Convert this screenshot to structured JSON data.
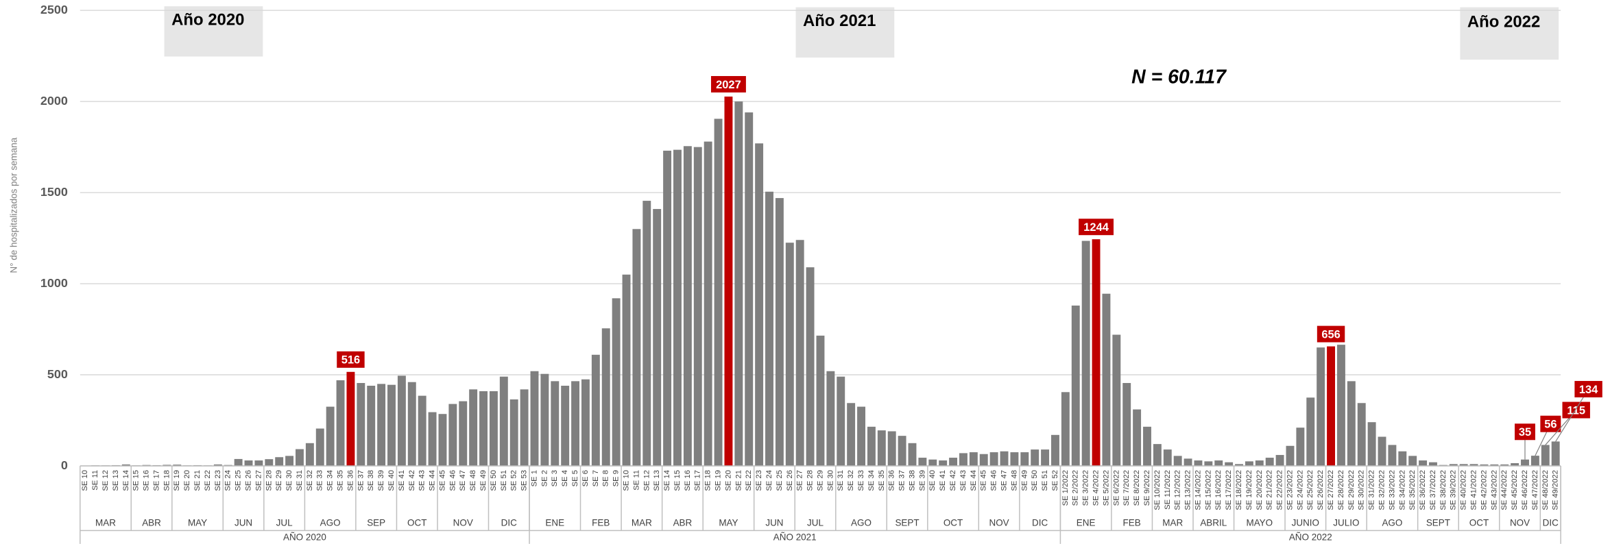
{
  "chart_data": {
    "type": "bar",
    "annotations": {
      "year_boxes": [
        "Año 2020",
        "Año 2021",
        "Año 2022"
      ],
      "total": "N = 60.117"
    },
    "ylabel": "N° de hospitalizados por semana",
    "ylim": [
      0,
      2500
    ],
    "yticks": [
      0,
      500,
      1000,
      1500,
      2000,
      2500
    ],
    "grid": true,
    "color": "#7f7f7f",
    "highlight_color": "#c00000",
    "label_color": "#c00000",
    "categories": [
      "SE 10",
      "SE 11",
      "SE 12",
      "SE 13",
      "SE 14",
      "SE 15",
      "SE 16",
      "SE 17",
      "SE 18",
      "SE 19",
      "SE 20",
      "SE 21",
      "SE 22",
      "SE 23",
      "SE 24",
      "SE 25",
      "SE 26",
      "SE 27",
      "SE 28",
      "SE 29",
      "SE 30",
      "SE 31",
      "SE 32",
      "SE 33",
      "SE 34",
      "SE 35",
      "SE 36",
      "SE 37",
      "SE 38",
      "SE 39",
      "SE 40",
      "SE 41",
      "SE 42",
      "SE 43",
      "SE 44",
      "SE 45",
      "SE 46",
      "SE 47",
      "SE 48",
      "SE 49",
      "SE 50",
      "SE 51",
      "SE 52",
      "SE 53",
      "SE 1",
      "SE 2",
      "SE 3",
      "SE 4",
      "SE 5",
      "SE 6",
      "SE 7",
      "SE 8",
      "SE 9",
      "SE 10",
      "SE 11",
      "SE 12",
      "SE 13",
      "SE 14",
      "SE 15",
      "SE 16",
      "SE 17",
      "SE 18",
      "SE 19",
      "SE 20",
      "SE 21",
      "SE 22",
      "SE 23",
      "SE 24",
      "SE 25",
      "SE 26",
      "SE 27",
      "SE 28",
      "SE 29",
      "SE 30",
      "SE 31",
      "SE 32",
      "SE 33",
      "SE 34",
      "SE 35",
      "SE 36",
      "SE 37",
      "SE 38",
      "SE 39",
      "SE 40",
      "SE 41",
      "SE 42",
      "SE 43",
      "SE 44",
      "SE 45",
      "SE 46",
      "SE 47",
      "SE 48",
      "SE 49",
      "SE 50",
      "SE 51",
      "SE 52",
      "SE 1/2022",
      "SE 2/2022",
      "SE 3/2022",
      "SE 4/2022",
      "SE 5/2022",
      "SE 6/2022",
      "SE 7/2022",
      "SE 8/2022",
      "SE 9/2022",
      "SE 10/2022",
      "SE 11/2022",
      "SE 12/2022",
      "SE 13/2022",
      "SE 14/2022",
      "SE 15/2022",
      "SE 16/2022",
      "SE 17/2022",
      "SE 18/2022",
      "SE 19/2022",
      "SE 20/2022",
      "SE 21/2022",
      "SE 22/2022",
      "SE 23/2022",
      "SE 24/2022",
      "SE 25/2022",
      "SE 26/2022",
      "SE 27/2022",
      "SE 28/2022",
      "SE 29/2022",
      "SE 30/2022",
      "SE 31/2022",
      "SE 32/2022",
      "SE 33/2022",
      "SE 34/2022",
      "SE 35/2022",
      "SE 36/2022",
      "SE 37/2022",
      "SE 38/2022",
      "SE 39/2022",
      "SE 40/2022",
      "SE 41/2022",
      "SE 42/2022",
      "SE 43/2022",
      "SE 44/2022",
      "SE 45/2022",
      "SE 46/2022",
      "SE 47/2022",
      "SE 48/2022",
      "SE 49/2022"
    ],
    "values": [
      2,
      3,
      3,
      4,
      8,
      3,
      5,
      4,
      6,
      7,
      3,
      4,
      3,
      8,
      5,
      38,
      30,
      30,
      37,
      48,
      55,
      92,
      125,
      205,
      325,
      470,
      516,
      455,
      440,
      450,
      445,
      495,
      460,
      385,
      295,
      285,
      340,
      355,
      420,
      410,
      410,
      490,
      365,
      420,
      520,
      505,
      465,
      440,
      465,
      475,
      610,
      755,
      920,
      1050,
      1300,
      1455,
      1410,
      1730,
      1735,
      1755,
      1750,
      1780,
      1905,
      2027,
      2000,
      1940,
      1770,
      1505,
      1470,
      1225,
      1240,
      1090,
      715,
      520,
      490,
      345,
      325,
      215,
      195,
      190,
      165,
      125,
      45,
      35,
      30,
      45,
      70,
      75,
      65,
      75,
      80,
      75,
      75,
      90,
      90,
      170,
      405,
      880,
      1235,
      1244,
      945,
      720,
      455,
      310,
      215,
      120,
      90,
      55,
      40,
      30,
      25,
      30,
      20,
      10,
      25,
      30,
      45,
      60,
      110,
      210,
      375,
      650,
      656,
      665,
      465,
      345,
      240,
      160,
      115,
      80,
      55,
      30,
      20,
      5,
      10,
      10,
      10,
      8,
      8,
      8,
      15,
      35,
      56,
      115,
      134
    ],
    "highlighted": [
      "SE 36 2020",
      "SE 20 2021",
      "SE 4/2022",
      "SE 27/2022"
    ],
    "value_labels": [
      null,
      null,
      null,
      null,
      null,
      null,
      null,
      null,
      null,
      null,
      null,
      null,
      null,
      null,
      null,
      null,
      null,
      null,
      null,
      null,
      null,
      null,
      null,
      null,
      null,
      null,
      "516",
      null,
      null,
      null,
      null,
      null,
      null,
      null,
      null,
      null,
      null,
      null,
      null,
      null,
      null,
      null,
      null,
      null,
      null,
      null,
      null,
      null,
      null,
      null,
      null,
      null,
      null,
      null,
      null,
      null,
      null,
      null,
      null,
      null,
      null,
      null,
      null,
      "2027",
      null,
      null,
      null,
      null,
      null,
      null,
      null,
      null,
      null,
      null,
      null,
      null,
      null,
      null,
      null,
      null,
      null,
      null,
      null,
      null,
      null,
      null,
      null,
      null,
      null,
      null,
      null,
      null,
      null,
      null,
      null,
      null,
      null,
      null,
      null,
      "1244",
      null,
      null,
      null,
      null,
      null,
      null,
      null,
      null,
      null,
      null,
      null,
      null,
      null,
      null,
      null,
      null,
      null,
      null,
      null,
      null,
      null,
      null,
      "656",
      null,
      null,
      null,
      null,
      null,
      null,
      null,
      null,
      null,
      null,
      null,
      null,
      null,
      null,
      null,
      null,
      null,
      null,
      "35",
      "56",
      "115",
      "134"
    ],
    "months": [
      {
        "name": "MAR",
        "weeks": 5
      },
      {
        "name": "ABR",
        "weeks": 4
      },
      {
        "name": "MAY",
        "weeks": 5
      },
      {
        "name": "JUN",
        "weeks": 4
      },
      {
        "name": "JUL",
        "weeks": 4
      },
      {
        "name": "AGO",
        "weeks": 5
      },
      {
        "name": "SEP",
        "weeks": 4
      },
      {
        "name": "OCT",
        "weeks": 4
      },
      {
        "name": "NOV",
        "weeks": 5
      },
      {
        "name": "DIC",
        "weeks": 4
      },
      {
        "name": "ENE",
        "weeks": 5
      },
      {
        "name": "FEB",
        "weeks": 4
      },
      {
        "name": "MAR",
        "weeks": 4
      },
      {
        "name": "ABR",
        "weeks": 4
      },
      {
        "name": "MAY",
        "weeks": 5
      },
      {
        "name": "JUN",
        "weeks": 4
      },
      {
        "name": "JUL",
        "weeks": 4
      },
      {
        "name": "AGO",
        "weeks": 5
      },
      {
        "name": "SEPT",
        "weeks": 4
      },
      {
        "name": "OCT",
        "weeks": 5
      },
      {
        "name": "NOV",
        "weeks": 4
      },
      {
        "name": "DIC",
        "weeks": 4
      },
      {
        "name": "ENE",
        "weeks": 5
      },
      {
        "name": "FEB",
        "weeks": 4
      },
      {
        "name": "MAR",
        "weeks": 4
      },
      {
        "name": "ABRIL",
        "weeks": 4
      },
      {
        "name": "MAYO",
        "weeks": 5
      },
      {
        "name": "JUNIO",
        "weeks": 4
      },
      {
        "name": "JULIO",
        "weeks": 4
      },
      {
        "name": "AGO",
        "weeks": 5
      },
      {
        "name": "SEPT",
        "weeks": 4
      },
      {
        "name": "OCT",
        "weeks": 4
      },
      {
        "name": "NOV",
        "weeks": 4
      },
      {
        "name": "DIC",
        "weeks": 2
      }
    ],
    "years": [
      {
        "name": "AÑO 2020",
        "weeks": 44
      },
      {
        "name": "AÑO 2021",
        "weeks": 52
      },
      {
        "name": "AÑO 2022",
        "weeks": 49
      }
    ]
  }
}
